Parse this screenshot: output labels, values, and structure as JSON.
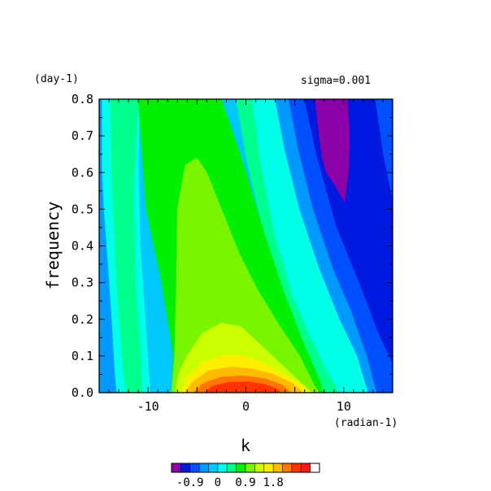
{
  "chart_data": {
    "type": "heatmap",
    "title": "",
    "xlabel": "k",
    "ylabel": "frequency",
    "x_units": "(radian-1)",
    "y_units": "(day-1)",
    "annotation": "sigma=0.001",
    "xlim": [
      -15,
      15
    ],
    "ylim": [
      0,
      0.8
    ],
    "x_ticks": [
      -10,
      0,
      10
    ],
    "x_tick_labels": [
      "-10",
      "0",
      "10"
    ],
    "y_ticks": [
      0.0,
      0.1,
      0.2,
      0.3,
      0.4,
      0.5,
      0.6,
      0.7,
      0.8
    ],
    "y_tick_labels": [
      "0.0",
      "0.1",
      "0.2",
      "0.3",
      "0.4",
      "0.5",
      "0.6",
      "0.7",
      "0.8"
    ],
    "colorbar": {
      "colors": [
        "#8b00a8",
        "#0019e0",
        "#0050ff",
        "#0099ff",
        "#00c8ff",
        "#00ffe6",
        "#00ff8c",
        "#00f000",
        "#7af500",
        "#ccff00",
        "#ffee00",
        "#ffbb00",
        "#ff7700",
        "#ff3300",
        "#ff1a1a",
        "#ffffff"
      ],
      "level_step": 0.3,
      "tick_values": [
        -0.9,
        0,
        0.9,
        1.8
      ],
      "tick_labels": [
        "-0.9",
        "0",
        "0.9",
        "1.8"
      ]
    },
    "contours": [
      {
        "level": "ambient",
        "band": 4
      },
      {
        "level": "light-blue",
        "band": 3,
        "points": [
          [
            -15,
            0
          ],
          [
            -15,
            0.8
          ],
          [
            -14,
            0.8
          ],
          [
            -14.2,
            0.6
          ],
          [
            -14.3,
            0.45
          ],
          [
            -14,
            0.32
          ],
          [
            -13.3,
            0.18
          ],
          [
            -12.6,
            0.1
          ],
          [
            -12.5,
            0.03
          ],
          [
            -12.4,
            0
          ]
        ]
      },
      {
        "level": "cyan-left",
        "band": 5,
        "points": [
          [
            -13.2,
            0
          ],
          [
            -13.4,
            0.06
          ],
          [
            -13.7,
            0.2
          ],
          [
            -14.1,
            0.36
          ],
          [
            -14.5,
            0.5
          ],
          [
            -14.7,
            0.62
          ],
          [
            -14.7,
            0.8
          ],
          [
            -10.8,
            0.8
          ],
          [
            -11,
            0.62
          ],
          [
            -10.8,
            0.4
          ],
          [
            -10.3,
            0.2
          ],
          [
            -10,
            0.08
          ],
          [
            -9.8,
            0
          ]
        ]
      },
      {
        "level": "aqua-green-left",
        "band": 6,
        "points": [
          [
            -12.2,
            0
          ],
          [
            -12.5,
            0.06
          ],
          [
            -13.2,
            0.3
          ],
          [
            -13.7,
            0.6
          ],
          [
            -13.8,
            0.8
          ],
          [
            -11,
            0.8
          ],
          [
            -11.5,
            0.55
          ],
          [
            -11.3,
            0.3
          ],
          [
            -10.8,
            0.12
          ],
          [
            -10.6,
            0
          ]
        ]
      },
      {
        "level": "cyan-right",
        "band": 5,
        "points": [
          [
            0.2,
            0.8
          ],
          [
            1.2,
            0.62
          ],
          [
            3,
            0.4
          ],
          [
            4.8,
            0.24
          ],
          [
            6.5,
            0.12
          ],
          [
            8,
            0.05
          ],
          [
            9,
            0
          ],
          [
            13,
            0
          ],
          [
            11.5,
            0.1
          ],
          [
            9.2,
            0.24
          ],
          [
            7.2,
            0.38
          ],
          [
            5,
            0.55
          ],
          [
            3.8,
            0.7
          ],
          [
            3.3,
            0.8
          ]
        ]
      },
      {
        "level": "aqua-green-right",
        "band": 6,
        "points": [
          [
            -1,
            0.8
          ],
          [
            0.2,
            0.62
          ],
          [
            1.8,
            0.44
          ],
          [
            3.6,
            0.28
          ],
          [
            5.6,
            0.15
          ],
          [
            7.2,
            0.06
          ],
          [
            8,
            0
          ],
          [
            9.5,
            0
          ],
          [
            8.2,
            0.06
          ],
          [
            6.6,
            0.15
          ],
          [
            4.8,
            0.26
          ],
          [
            2.9,
            0.43
          ],
          [
            1.5,
            0.62
          ],
          [
            0.6,
            0.8
          ]
        ]
      },
      {
        "level": "light-blue-right",
        "band": 3,
        "points": [
          [
            3,
            0.8
          ],
          [
            4,
            0.66
          ],
          [
            5.5,
            0.5
          ],
          [
            7.5,
            0.34
          ],
          [
            9.6,
            0.2
          ],
          [
            11.4,
            0.1
          ],
          [
            12.5,
            0
          ],
          [
            13.8,
            0
          ],
          [
            12.3,
            0.12
          ],
          [
            10.4,
            0.24
          ],
          [
            8.6,
            0.38
          ],
          [
            6.7,
            0.55
          ],
          [
            5.2,
            0.7
          ],
          [
            4.5,
            0.8
          ]
        ]
      },
      {
        "level": "blue-right",
        "band": 2,
        "points": [
          [
            4.4,
            0.8
          ],
          [
            5.4,
            0.66
          ],
          [
            6.9,
            0.5
          ],
          [
            8.9,
            0.34
          ],
          [
            10.8,
            0.22
          ],
          [
            12.4,
            0.1
          ],
          [
            13.4,
            0
          ],
          [
            15,
            0
          ],
          [
            15,
            0.8
          ]
        ]
      },
      {
        "level": "dark-blue",
        "band": 1,
        "points": [
          [
            6,
            0.8
          ],
          [
            7.3,
            0.64
          ],
          [
            9.3,
            0.45
          ],
          [
            11.6,
            0.3
          ],
          [
            13.6,
            0.16
          ],
          [
            15,
            0.08
          ],
          [
            15,
            0.52
          ],
          [
            14,
            0.65
          ],
          [
            13.2,
            0.8
          ]
        ]
      },
      {
        "level": "light-green",
        "band": 7,
        "points": [
          [
            -7.6,
            0
          ],
          [
            -7.4,
            0.1
          ],
          [
            -8.6,
            0.3
          ],
          [
            -10.2,
            0.5
          ],
          [
            -11,
            0.8
          ],
          [
            -2.5,
            0.8
          ],
          [
            -0.2,
            0.62
          ],
          [
            1.8,
            0.44
          ],
          [
            3.8,
            0.28
          ],
          [
            5.8,
            0.14
          ],
          [
            7.6,
            0.03
          ],
          [
            7.9,
            0
          ]
        ]
      },
      {
        "level": "yellow-green",
        "band": 8,
        "points": [
          [
            -7.6,
            0
          ],
          [
            -7.3,
            0.1
          ],
          [
            -7.1,
            0.3
          ],
          [
            -7,
            0.5
          ],
          [
            -6.2,
            0.62
          ],
          [
            -5,
            0.64
          ],
          [
            -4,
            0.6
          ],
          [
            -2.5,
            0.5
          ],
          [
            -0.7,
            0.38
          ],
          [
            1.2,
            0.28
          ],
          [
            3.5,
            0.18
          ],
          [
            5.5,
            0.1
          ],
          [
            7,
            0.02
          ],
          [
            7.5,
            0
          ]
        ]
      },
      {
        "level": "yellow",
        "band": 9,
        "points": [
          [
            -7.2,
            0
          ],
          [
            -6.9,
            0.05
          ],
          [
            -6,
            0.1
          ],
          [
            -4.5,
            0.16
          ],
          [
            -2.5,
            0.19
          ],
          [
            -0.5,
            0.18
          ],
          [
            1.5,
            0.13
          ],
          [
            3.5,
            0.08
          ],
          [
            5.5,
            0.03
          ],
          [
            6.8,
            0
          ]
        ]
      },
      {
        "level": "gold",
        "band": 10,
        "points": [
          [
            -6.6,
            0
          ],
          [
            -6,
            0.04
          ],
          [
            -4.5,
            0.08
          ],
          [
            -2.5,
            0.1
          ],
          [
            -0.3,
            0.1
          ],
          [
            1.8,
            0.08
          ],
          [
            3.8,
            0.05
          ],
          [
            5.8,
            0.02
          ],
          [
            6.4,
            0
          ]
        ]
      },
      {
        "level": "orange",
        "band": 11,
        "points": [
          [
            -6.2,
            0
          ],
          [
            -5.4,
            0.03
          ],
          [
            -3.8,
            0.06
          ],
          [
            -1.5,
            0.07
          ],
          [
            0.6,
            0.065
          ],
          [
            2.8,
            0.05
          ],
          [
            4.8,
            0.025
          ],
          [
            5.8,
            0
          ]
        ]
      },
      {
        "level": "red-orange",
        "band": 12,
        "points": [
          [
            -5.4,
            0
          ],
          [
            -4.4,
            0.025
          ],
          [
            -2.6,
            0.042
          ],
          [
            -0.3,
            0.046
          ],
          [
            2,
            0.038
          ],
          [
            3.8,
            0.02
          ],
          [
            4.6,
            0
          ]
        ]
      },
      {
        "level": "red",
        "band": 13,
        "points": [
          [
            -4.2,
            0
          ],
          [
            -3.4,
            0.018
          ],
          [
            -1.8,
            0.028
          ],
          [
            0.2,
            0.03
          ],
          [
            2,
            0.022
          ],
          [
            3.2,
            0.01
          ],
          [
            3.6,
            0
          ]
        ]
      },
      {
        "level": "purple",
        "band": 0,
        "points": [
          [
            7.1,
            0.8
          ],
          [
            7.4,
            0.72
          ],
          [
            7.8,
            0.64
          ],
          [
            8.2,
            0.6
          ],
          [
            9,
            0.57
          ],
          [
            10.1,
            0.52
          ],
          [
            10.5,
            0.6
          ],
          [
            10.6,
            0.7
          ],
          [
            10.4,
            0.8
          ]
        ]
      }
    ]
  }
}
